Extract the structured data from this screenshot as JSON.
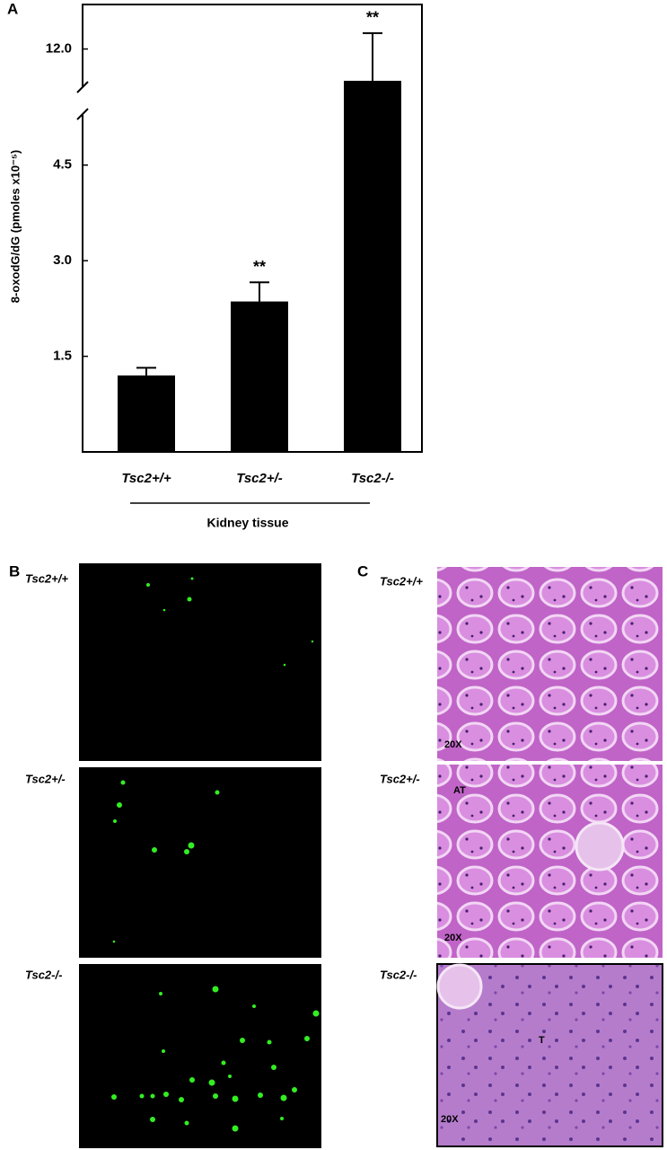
{
  "chart_data": {
    "type": "bar",
    "panel_label": "A",
    "ylabel": "8-oxodG/dG (pmoles x10⁻⁵)",
    "xlabel": "Kidney tissue",
    "categories": [
      "Tsc2+/+",
      "Tsc2+/-",
      "Tsc2-/-"
    ],
    "values": [
      1.2,
      2.36,
      11.5
    ],
    "errors": [
      0.12,
      0.3,
      0.75
    ],
    "annotations": [
      null,
      "**",
      "**"
    ],
    "color": "#000000",
    "ylim": [
      0,
      12.7
    ],
    "axis_break": [
      5.3,
      11.4
    ],
    "yticks": [
      1.5,
      {
        "value": 3,
        "label": "3.0"
      },
      4.5,
      {
        "value": 12,
        "label": "12.0"
      }
    ],
    "grid": false
  },
  "panel_b": {
    "label": "B",
    "rows": [
      "Tsc2+/+",
      "Tsc2+/-",
      "Tsc2-/-"
    ]
  },
  "panel_c": {
    "label": "C",
    "rows": [
      "Tsc2+/+",
      "Tsc2+/-",
      "Tsc2-/-"
    ],
    "magnifications": [
      "20X",
      "20X",
      "20X"
    ],
    "annotations": [
      "AT",
      "T"
    ]
  }
}
